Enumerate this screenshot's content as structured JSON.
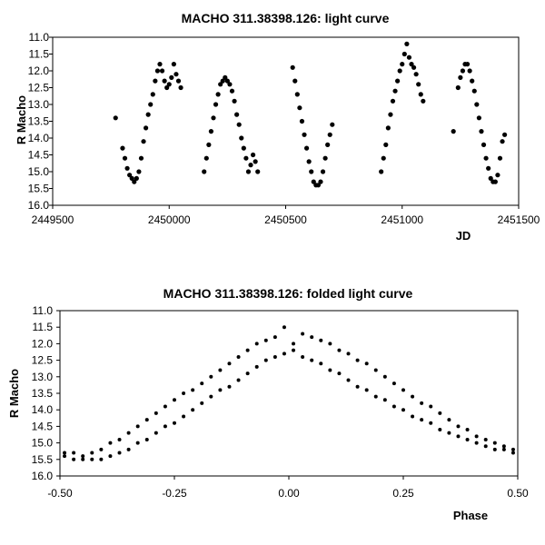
{
  "chart_data": [
    {
      "type": "scatter",
      "title": "MACHO 311.38398.126: light curve",
      "xlabel": "JD",
      "ylabel": "R Macho",
      "xlim": [
        2449500,
        2451500
      ],
      "ylim": [
        11.0,
        16.0
      ],
      "y_inverted": true,
      "grid": false,
      "x_ticks": [
        "2449500",
        "2450000",
        "2450500",
        "2451000",
        "2451500"
      ],
      "y_ticks": [
        "11.0",
        "11.5",
        "12.0",
        "12.5",
        "13.0",
        "13.5",
        "14.0",
        "14.5",
        "15.0",
        "15.5",
        "16.0"
      ],
      "marker_color": "#000000",
      "series": [
        {
          "x": [
            2449770,
            2449800,
            2449810,
            2449820,
            2449830,
            2449840,
            2449850,
            2449860,
            2449870,
            2449880,
            2449890,
            2449900,
            2449910,
            2449920,
            2449930,
            2449940,
            2449950,
            2449960,
            2449970,
            2449980,
            2449990,
            2450000,
            2450010,
            2450020,
            2450030,
            2450040,
            2450050
          ],
          "y": [
            13.4,
            14.3,
            14.6,
            14.9,
            15.1,
            15.2,
            15.3,
            15.2,
            15.0,
            14.6,
            14.1,
            13.7,
            13.3,
            13.0,
            12.7,
            12.3,
            12.0,
            11.8,
            12.0,
            12.3,
            12.5,
            12.4,
            12.2,
            11.8,
            12.1,
            12.3,
            12.5
          ]
        },
        {
          "x": [
            2450150,
            2450160,
            2450170,
            2450180,
            2450190,
            2450200,
            2450210,
            2450220,
            2450230,
            2450240,
            2450250,
            2450260,
            2450270,
            2450280,
            2450290,
            2450300,
            2450310,
            2450320,
            2450330,
            2450340,
            2450350,
            2450360,
            2450370,
            2450380
          ],
          "y": [
            15.0,
            14.6,
            14.2,
            13.8,
            13.4,
            13.0,
            12.7,
            12.4,
            12.3,
            12.2,
            12.3,
            12.4,
            12.6,
            12.9,
            13.3,
            13.6,
            14.0,
            14.3,
            14.6,
            15.0,
            14.8,
            14.5,
            14.7,
            15.0
          ]
        },
        {
          "x": [
            2450530,
            2450540,
            2450550,
            2450560,
            2450570,
            2450580,
            2450590,
            2450600,
            2450610,
            2450620,
            2450630,
            2450640,
            2450650,
            2450660,
            2450670,
            2450680,
            2450690,
            2450700
          ],
          "y": [
            11.9,
            12.3,
            12.7,
            13.1,
            13.5,
            13.9,
            14.3,
            14.7,
            15.0,
            15.3,
            15.4,
            15.4,
            15.3,
            15.0,
            14.6,
            14.2,
            13.9,
            13.6
          ]
        },
        {
          "x": [
            2450910,
            2450920,
            2450930,
            2450940,
            2450950,
            2450960,
            2450970,
            2450980,
            2450990,
            2451000,
            2451010,
            2451020,
            2451030,
            2451040,
            2451050,
            2451060,
            2451070,
            2451080,
            2451090
          ],
          "y": [
            15.0,
            14.6,
            14.2,
            13.7,
            13.3,
            12.9,
            12.6,
            12.3,
            12.0,
            11.8,
            11.5,
            11.2,
            11.6,
            11.8,
            11.9,
            12.1,
            12.4,
            12.7,
            12.9
          ]
        },
        {
          "x": [
            2451220,
            2451240,
            2451250,
            2451260,
            2451270,
            2451280,
            2451290,
            2451300,
            2451310,
            2451320,
            2451330,
            2451340,
            2451350,
            2451360,
            2451370,
            2451380,
            2451390,
            2451400,
            2451410,
            2451420,
            2451430,
            2451440
          ],
          "y": [
            13.8,
            12.5,
            12.2,
            12.0,
            11.8,
            11.8,
            12.0,
            12.3,
            12.6,
            13.0,
            13.4,
            13.8,
            14.2,
            14.6,
            14.9,
            15.2,
            15.3,
            15.3,
            15.1,
            14.6,
            14.1,
            13.9
          ]
        }
      ]
    },
    {
      "type": "scatter",
      "title": "MACHO 311.38398.126: folded light curve",
      "xlabel": "Phase",
      "ylabel": "R Macho",
      "xlim": [
        -0.5,
        0.5
      ],
      "ylim": [
        11.0,
        16.0
      ],
      "y_inverted": true,
      "grid": false,
      "x_ticks": [
        "-0.50",
        "-0.25",
        "0.00",
        "0.25",
        "0.50"
      ],
      "y_ticks": [
        "11.0",
        "11.5",
        "12.0",
        "12.5",
        "13.0",
        "13.5",
        "14.0",
        "14.5",
        "15.0",
        "15.5",
        "16.0"
      ],
      "marker_color": "#000000",
      "series": [
        {
          "x": [
            -0.49,
            -0.47,
            -0.45,
            -0.43,
            -0.41,
            -0.39,
            -0.37,
            -0.35,
            -0.33,
            -0.31,
            -0.29,
            -0.27,
            -0.25,
            -0.23,
            -0.21,
            -0.19,
            -0.17,
            -0.15,
            -0.13,
            -0.11,
            -0.09,
            -0.07,
            -0.05,
            -0.03,
            -0.01,
            0.01,
            0.03,
            0.05,
            0.07,
            0.09,
            0.11,
            0.13,
            0.15,
            0.17,
            0.19,
            0.21,
            0.23,
            0.25,
            0.27,
            0.29,
            0.31,
            0.33,
            0.35,
            0.37,
            0.39,
            0.41,
            0.43,
            0.45,
            0.47,
            0.49
          ],
          "y": [
            15.3,
            15.3,
            15.4,
            15.3,
            15.2,
            15.0,
            14.9,
            14.7,
            14.5,
            14.3,
            14.1,
            13.9,
            13.7,
            13.5,
            13.4,
            13.2,
            13.0,
            12.8,
            12.6,
            12.4,
            12.2,
            12.0,
            11.9,
            11.8,
            11.5,
            12.0,
            11.7,
            11.8,
            11.9,
            12.0,
            12.2,
            12.3,
            12.5,
            12.6,
            12.8,
            13.0,
            13.2,
            13.4,
            13.6,
            13.8,
            13.9,
            14.1,
            14.3,
            14.5,
            14.6,
            14.8,
            14.9,
            15.0,
            15.1,
            15.2
          ]
        },
        {
          "x": [
            -0.49,
            -0.47,
            -0.45,
            -0.43,
            -0.41,
            -0.39,
            -0.37,
            -0.35,
            -0.33,
            -0.31,
            -0.29,
            -0.27,
            -0.25,
            -0.23,
            -0.21,
            -0.19,
            -0.17,
            -0.15,
            -0.13,
            -0.11,
            -0.09,
            -0.07,
            -0.05,
            -0.03,
            -0.01,
            0.01,
            0.03,
            0.05,
            0.07,
            0.09,
            0.11,
            0.13,
            0.15,
            0.17,
            0.19,
            0.21,
            0.23,
            0.25,
            0.27,
            0.29,
            0.31,
            0.33,
            0.35,
            0.37,
            0.39,
            0.41,
            0.43,
            0.45,
            0.47,
            0.49
          ],
          "y": [
            15.4,
            15.5,
            15.5,
            15.5,
            15.5,
            15.4,
            15.3,
            15.2,
            15.0,
            14.9,
            14.7,
            14.5,
            14.4,
            14.2,
            14.0,
            13.8,
            13.6,
            13.4,
            13.3,
            13.1,
            12.9,
            12.7,
            12.5,
            12.4,
            12.3,
            12.2,
            12.4,
            12.5,
            12.6,
            12.8,
            12.9,
            13.1,
            13.3,
            13.4,
            13.6,
            13.7,
            13.9,
            14.0,
            14.2,
            14.3,
            14.4,
            14.6,
            14.7,
            14.8,
            14.9,
            15.0,
            15.1,
            15.2,
            15.2,
            15.3
          ]
        }
      ]
    }
  ]
}
